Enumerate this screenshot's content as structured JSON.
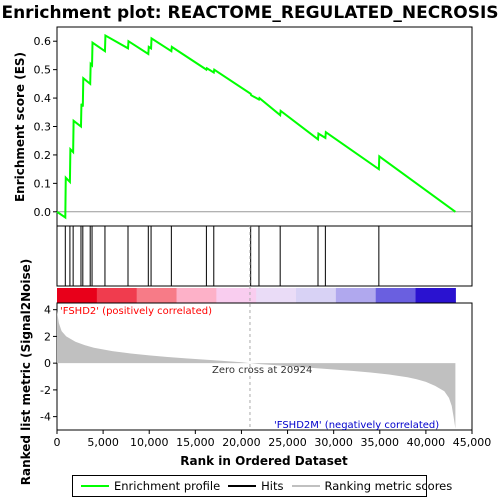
{
  "title": "Enrichment plot: REACTOME_REGULATED_NECROSIS",
  "chart_data": {
    "type": "line",
    "title": "Enrichment plot: REACTOME_REGULATED_NECROSIS",
    "xlabel": "Rank in Ordered Dataset",
    "es_ylabel": "Enrichment score (ES)",
    "metric_ylabel": "Ranked list metric (Signal2Noise)",
    "xlim": [
      0,
      45000
    ],
    "x_ticks": [
      0,
      5000,
      10000,
      15000,
      20000,
      25000,
      30000,
      35000,
      40000,
      45000
    ],
    "x_tick_labels": [
      "0",
      "5,000",
      "10,000",
      "15,000",
      "20,000",
      "25,000",
      "30,000",
      "35,000",
      "40,000",
      "45,000"
    ],
    "es_ylim": [
      -0.05,
      0.65
    ],
    "es_ticks": [
      0.0,
      0.1,
      0.2,
      0.3,
      0.4,
      0.5,
      0.6
    ],
    "es_tick_labels": [
      "0.0",
      "0.1",
      "0.2",
      "0.3",
      "0.4",
      "0.5",
      "0.6"
    ],
    "metric_ylim": [
      -5,
      4.5
    ],
    "metric_ticks": [
      -4,
      -2,
      0,
      2,
      4
    ],
    "metric_tick_labels": [
      "-4",
      "-2",
      "0",
      "2",
      "4"
    ],
    "grid": false,
    "legend_position": "bottom",
    "series": [
      {
        "name": "Enrichment profile",
        "color": "#00ff00",
        "x": [
          0,
          900,
          950,
          1400,
          1450,
          1750,
          1800,
          2600,
          2650,
          2800,
          2850,
          3600,
          3650,
          3800,
          3850,
          5200,
          5250,
          7700,
          7750,
          9900,
          9950,
          10200,
          10250,
          12400,
          12450,
          16200,
          16250,
          17000,
          17050,
          21000,
          21050,
          21900,
          21950,
          24200,
          24250,
          28300,
          28350,
          29100,
          29150,
          34900,
          34950,
          43200
        ],
        "y": [
          0.0,
          -0.02,
          0.12,
          0.105,
          0.22,
          0.21,
          0.32,
          0.3,
          0.38,
          0.37,
          0.47,
          0.45,
          0.52,
          0.515,
          0.595,
          0.565,
          0.62,
          0.575,
          0.6,
          0.555,
          0.58,
          0.575,
          0.61,
          0.565,
          0.58,
          0.5,
          0.505,
          0.49,
          0.5,
          0.415,
          0.41,
          0.395,
          0.4,
          0.34,
          0.355,
          0.255,
          0.275,
          0.26,
          0.28,
          0.15,
          0.195,
          0.0
        ]
      }
    ],
    "hits": [
      900,
      1400,
      1750,
      2600,
      2800,
      3600,
      3800,
      5200,
      7700,
      9900,
      10200,
      12400,
      16200,
      17000,
      21000,
      21900,
      24200,
      28300,
      29100,
      34900
    ],
    "metric_profile": {
      "x": [
        0,
        200,
        500,
        1000,
        2000,
        3000,
        4000,
        6000,
        8000,
        10000,
        12000,
        14000,
        16000,
        18000,
        20000,
        20924,
        22000,
        24000,
        26000,
        28000,
        30000,
        32000,
        34000,
        36000,
        38000,
        39000,
        40000,
        41000,
        42000,
        42500,
        42800,
        43000,
        43200
      ],
      "y": [
        3.9,
        3.0,
        2.4,
        2.0,
        1.6,
        1.35,
        1.15,
        0.9,
        0.72,
        0.58,
        0.46,
        0.36,
        0.26,
        0.17,
        0.07,
        0.0,
        -0.07,
        -0.17,
        -0.27,
        -0.37,
        -0.47,
        -0.58,
        -0.7,
        -0.85,
        -1.05,
        -1.2,
        -1.4,
        -1.7,
        -2.1,
        -2.6,
        -3.2,
        -4.0,
        -4.9
      ]
    },
    "zero_cross": 20924,
    "annotations": {
      "positive_label": "'FSHD2' (positively correlated)",
      "negative_label": "'FSHD2M' (negatively correlated)",
      "zero_cross_label": "Zero cross at 20924"
    },
    "colors": {
      "es_line": "#00ff00",
      "hit": "#000000",
      "metric_fill": "#c0c0c0",
      "positive_text": "#ff0000",
      "negative_text": "#0000cc",
      "heat_segments": [
        "#e8001a",
        "#f03c4e",
        "#f77b87",
        "#fdb1c8",
        "#f9cdef",
        "#eadcf7",
        "#d8d2f5",
        "#b0a8ee",
        "#6a5fe0",
        "#2a12d0"
      ]
    }
  },
  "legend": {
    "items": [
      {
        "label": "Enrichment profile",
        "color": "#00ff00"
      },
      {
        "label": "Hits",
        "color": "#000000"
      },
      {
        "label": "Ranking metric scores",
        "color": "#c0c0c0"
      }
    ]
  }
}
